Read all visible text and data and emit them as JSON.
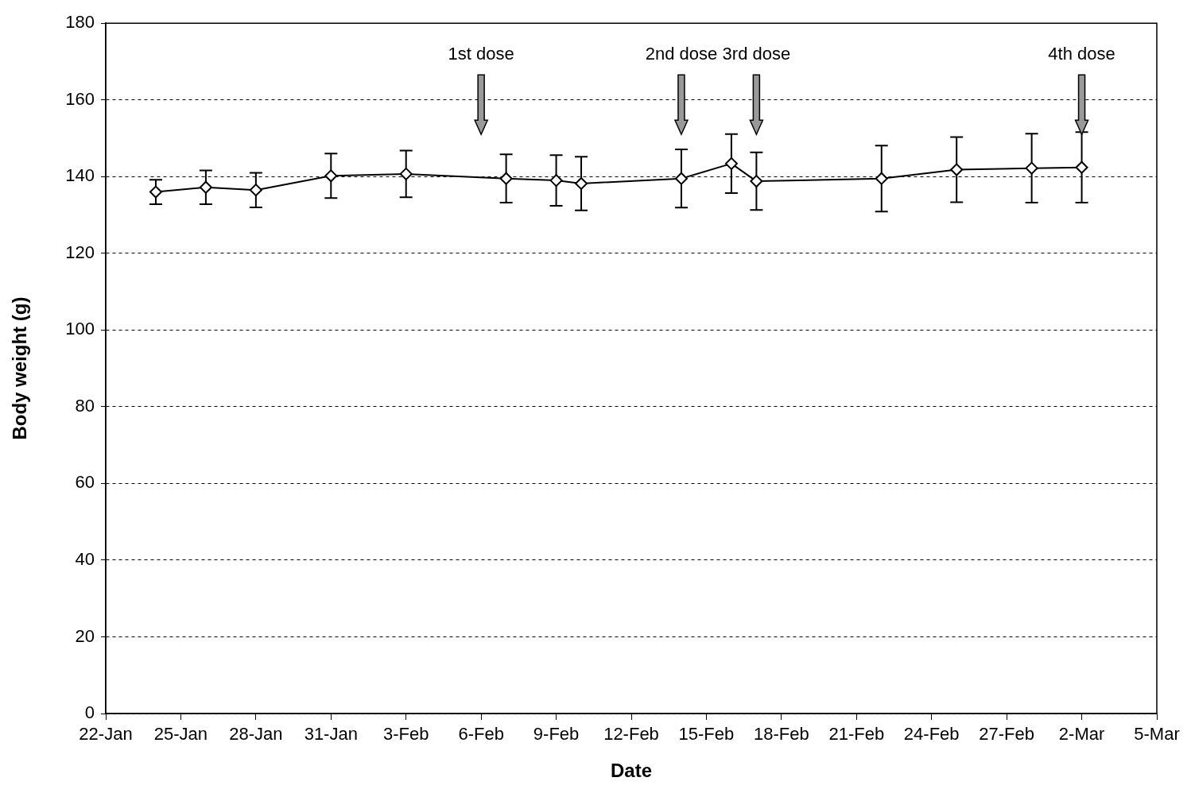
{
  "chart_data": {
    "type": "line",
    "xlabel": "Date",
    "ylabel": "Body weight (g)",
    "x": [
      "--01-24",
      "--01-26",
      "--01-28",
      "--01-31",
      "--02-03",
      "--02-07",
      "--02-09",
      "--02-10",
      "--02-14",
      "--02-16",
      "--02-17",
      "--02-22",
      "--02-25",
      "--02-28",
      "--03-02"
    ],
    "series": [
      {
        "color": "#000000",
        "values": [
          136.0,
          137.2,
          136.5,
          140.2,
          140.7,
          139.5,
          139.0,
          138.2,
          139.5,
          143.4,
          138.8,
          139.5,
          141.8,
          142.2,
          142.4
        ],
        "errors": [
          3.2,
          4.4,
          4.5,
          5.8,
          6.1,
          6.3,
          6.6,
          7.0,
          7.6,
          7.7,
          7.5,
          8.6,
          8.5,
          9.0,
          9.2
        ]
      }
    ],
    "marker": "diamond",
    "line_style": "solid",
    "grid": "y",
    "legend": false,
    "xlim": [
      "--01-22",
      "--03-05"
    ],
    "xticks": [
      {
        "value": "--01-22",
        "label": "22-Jan"
      },
      {
        "value": "--01-25",
        "label": "25-Jan"
      },
      {
        "value": "--01-28",
        "label": "28-Jan"
      },
      {
        "value": "--01-31",
        "label": "31-Jan"
      },
      {
        "value": "--02-03",
        "label": "3-Feb"
      },
      {
        "value": "--02-06",
        "label": "6-Feb"
      },
      {
        "value": "--02-09",
        "label": "9-Feb"
      },
      {
        "value": "--02-12",
        "label": "12-Feb"
      },
      {
        "value": "--02-15",
        "label": "15-Feb"
      },
      {
        "value": "--02-18",
        "label": "18-Feb"
      },
      {
        "value": "--02-21",
        "label": "21-Feb"
      },
      {
        "value": "--02-24",
        "label": "24-Feb"
      },
      {
        "value": "--02-27",
        "label": "27-Feb"
      },
      {
        "value": "--03-02",
        "label": "2-Mar"
      },
      {
        "value": "--03-05",
        "label": "5-Mar"
      }
    ],
    "ylim": [
      0,
      180
    ],
    "yticks": [
      0,
      20,
      40,
      60,
      80,
      100,
      120,
      140,
      160,
      180
    ],
    "ref_lines": [
      {
        "axis": "x",
        "value": "--02-06",
        "label": "1st dose"
      },
      {
        "axis": "x",
        "value": "--02-14",
        "label": "2nd dose"
      },
      {
        "axis": "x",
        "value": "--02-17",
        "label": "3rd dose"
      },
      {
        "axis": "x",
        "value": "--03-02",
        "label": "4th dose"
      }
    ]
  }
}
